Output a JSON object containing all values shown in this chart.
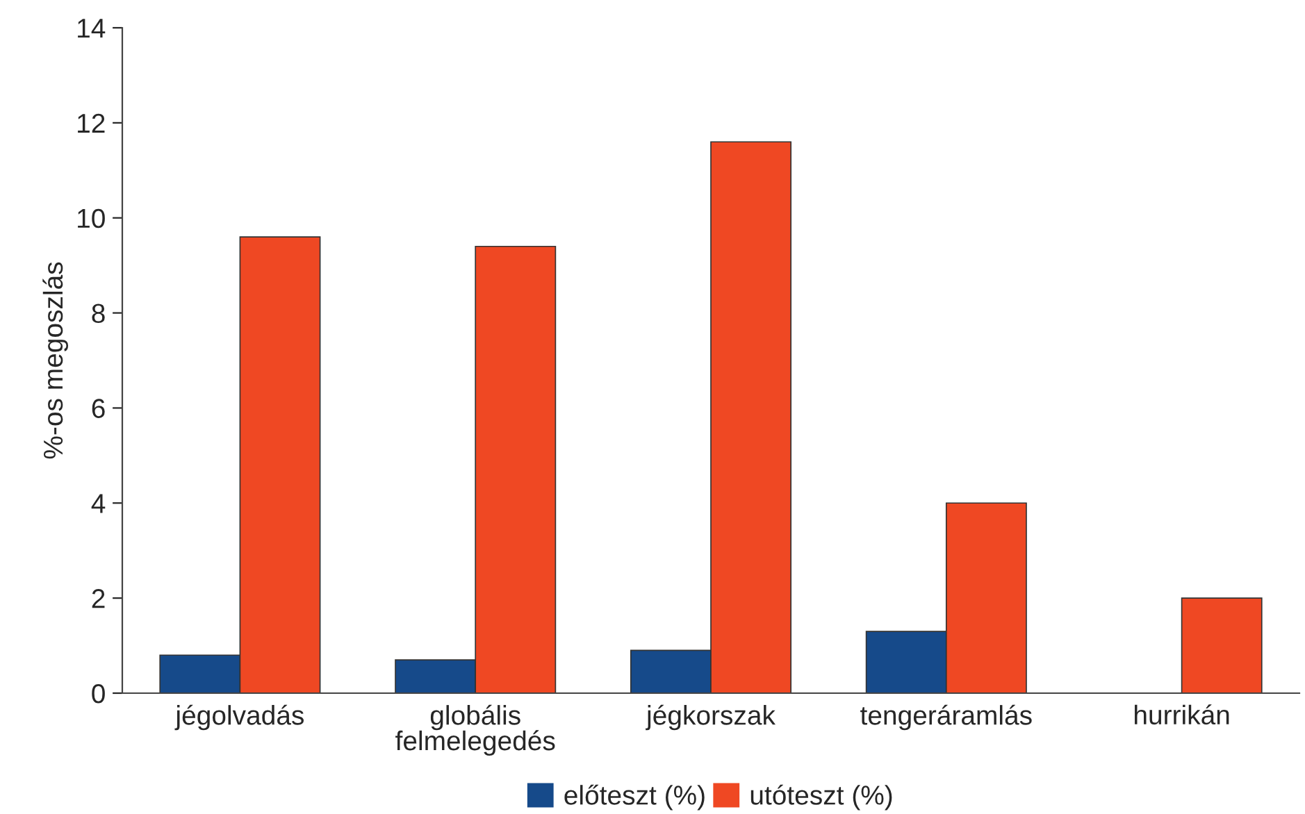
{
  "chart_data": {
    "type": "bar",
    "ylabel": "%-os megoszlás",
    "categories": [
      "jégolvadás",
      "globális\nfelmelegedés",
      "jégkorszak",
      "tengeráramlás",
      "hurrikán"
    ],
    "series": [
      {
        "name": "előteszt (%)",
        "color": "#164a8a",
        "values": [
          0.8,
          0.7,
          0.9,
          1.3,
          null
        ]
      },
      {
        "name": "utóteszt (%)",
        "color": "#ef4823",
        "values": [
          9.6,
          9.4,
          11.6,
          4.0,
          2.0
        ]
      }
    ],
    "ylim": [
      0,
      14
    ],
    "yticks": [
      0,
      2,
      4,
      6,
      8,
      10,
      12,
      14
    ],
    "grid": false,
    "legend": "bottom"
  }
}
